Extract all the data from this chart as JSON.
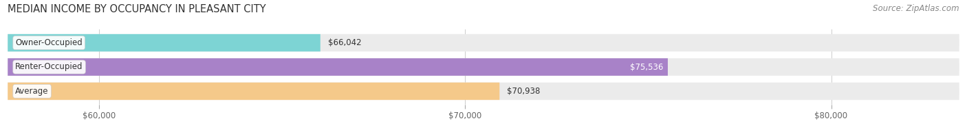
{
  "title": "MEDIAN INCOME BY OCCUPANCY IN PLEASANT CITY",
  "source": "Source: ZipAtlas.com",
  "categories": [
    "Owner-Occupied",
    "Renter-Occupied",
    "Average"
  ],
  "values": [
    66042,
    75536,
    70938
  ],
  "bar_colors": [
    "#7dd4d4",
    "#a882c8",
    "#f5c98a"
  ],
  "bar_bg_color": "#ebebeb",
  "value_labels": [
    "$66,042",
    "$75,536",
    "$70,938"
  ],
  "value_inside": [
    false,
    true,
    false
  ],
  "xmin": 57500,
  "xmax": 83500,
  "xticks": [
    60000,
    70000,
    80000
  ],
  "xtick_labels": [
    "$60,000",
    "$70,000",
    "$80,000"
  ],
  "title_fontsize": 10.5,
  "source_fontsize": 8.5,
  "cat_fontsize": 8.5,
  "value_fontsize": 8.5,
  "bar_height": 0.72,
  "background_color": "#ffffff"
}
